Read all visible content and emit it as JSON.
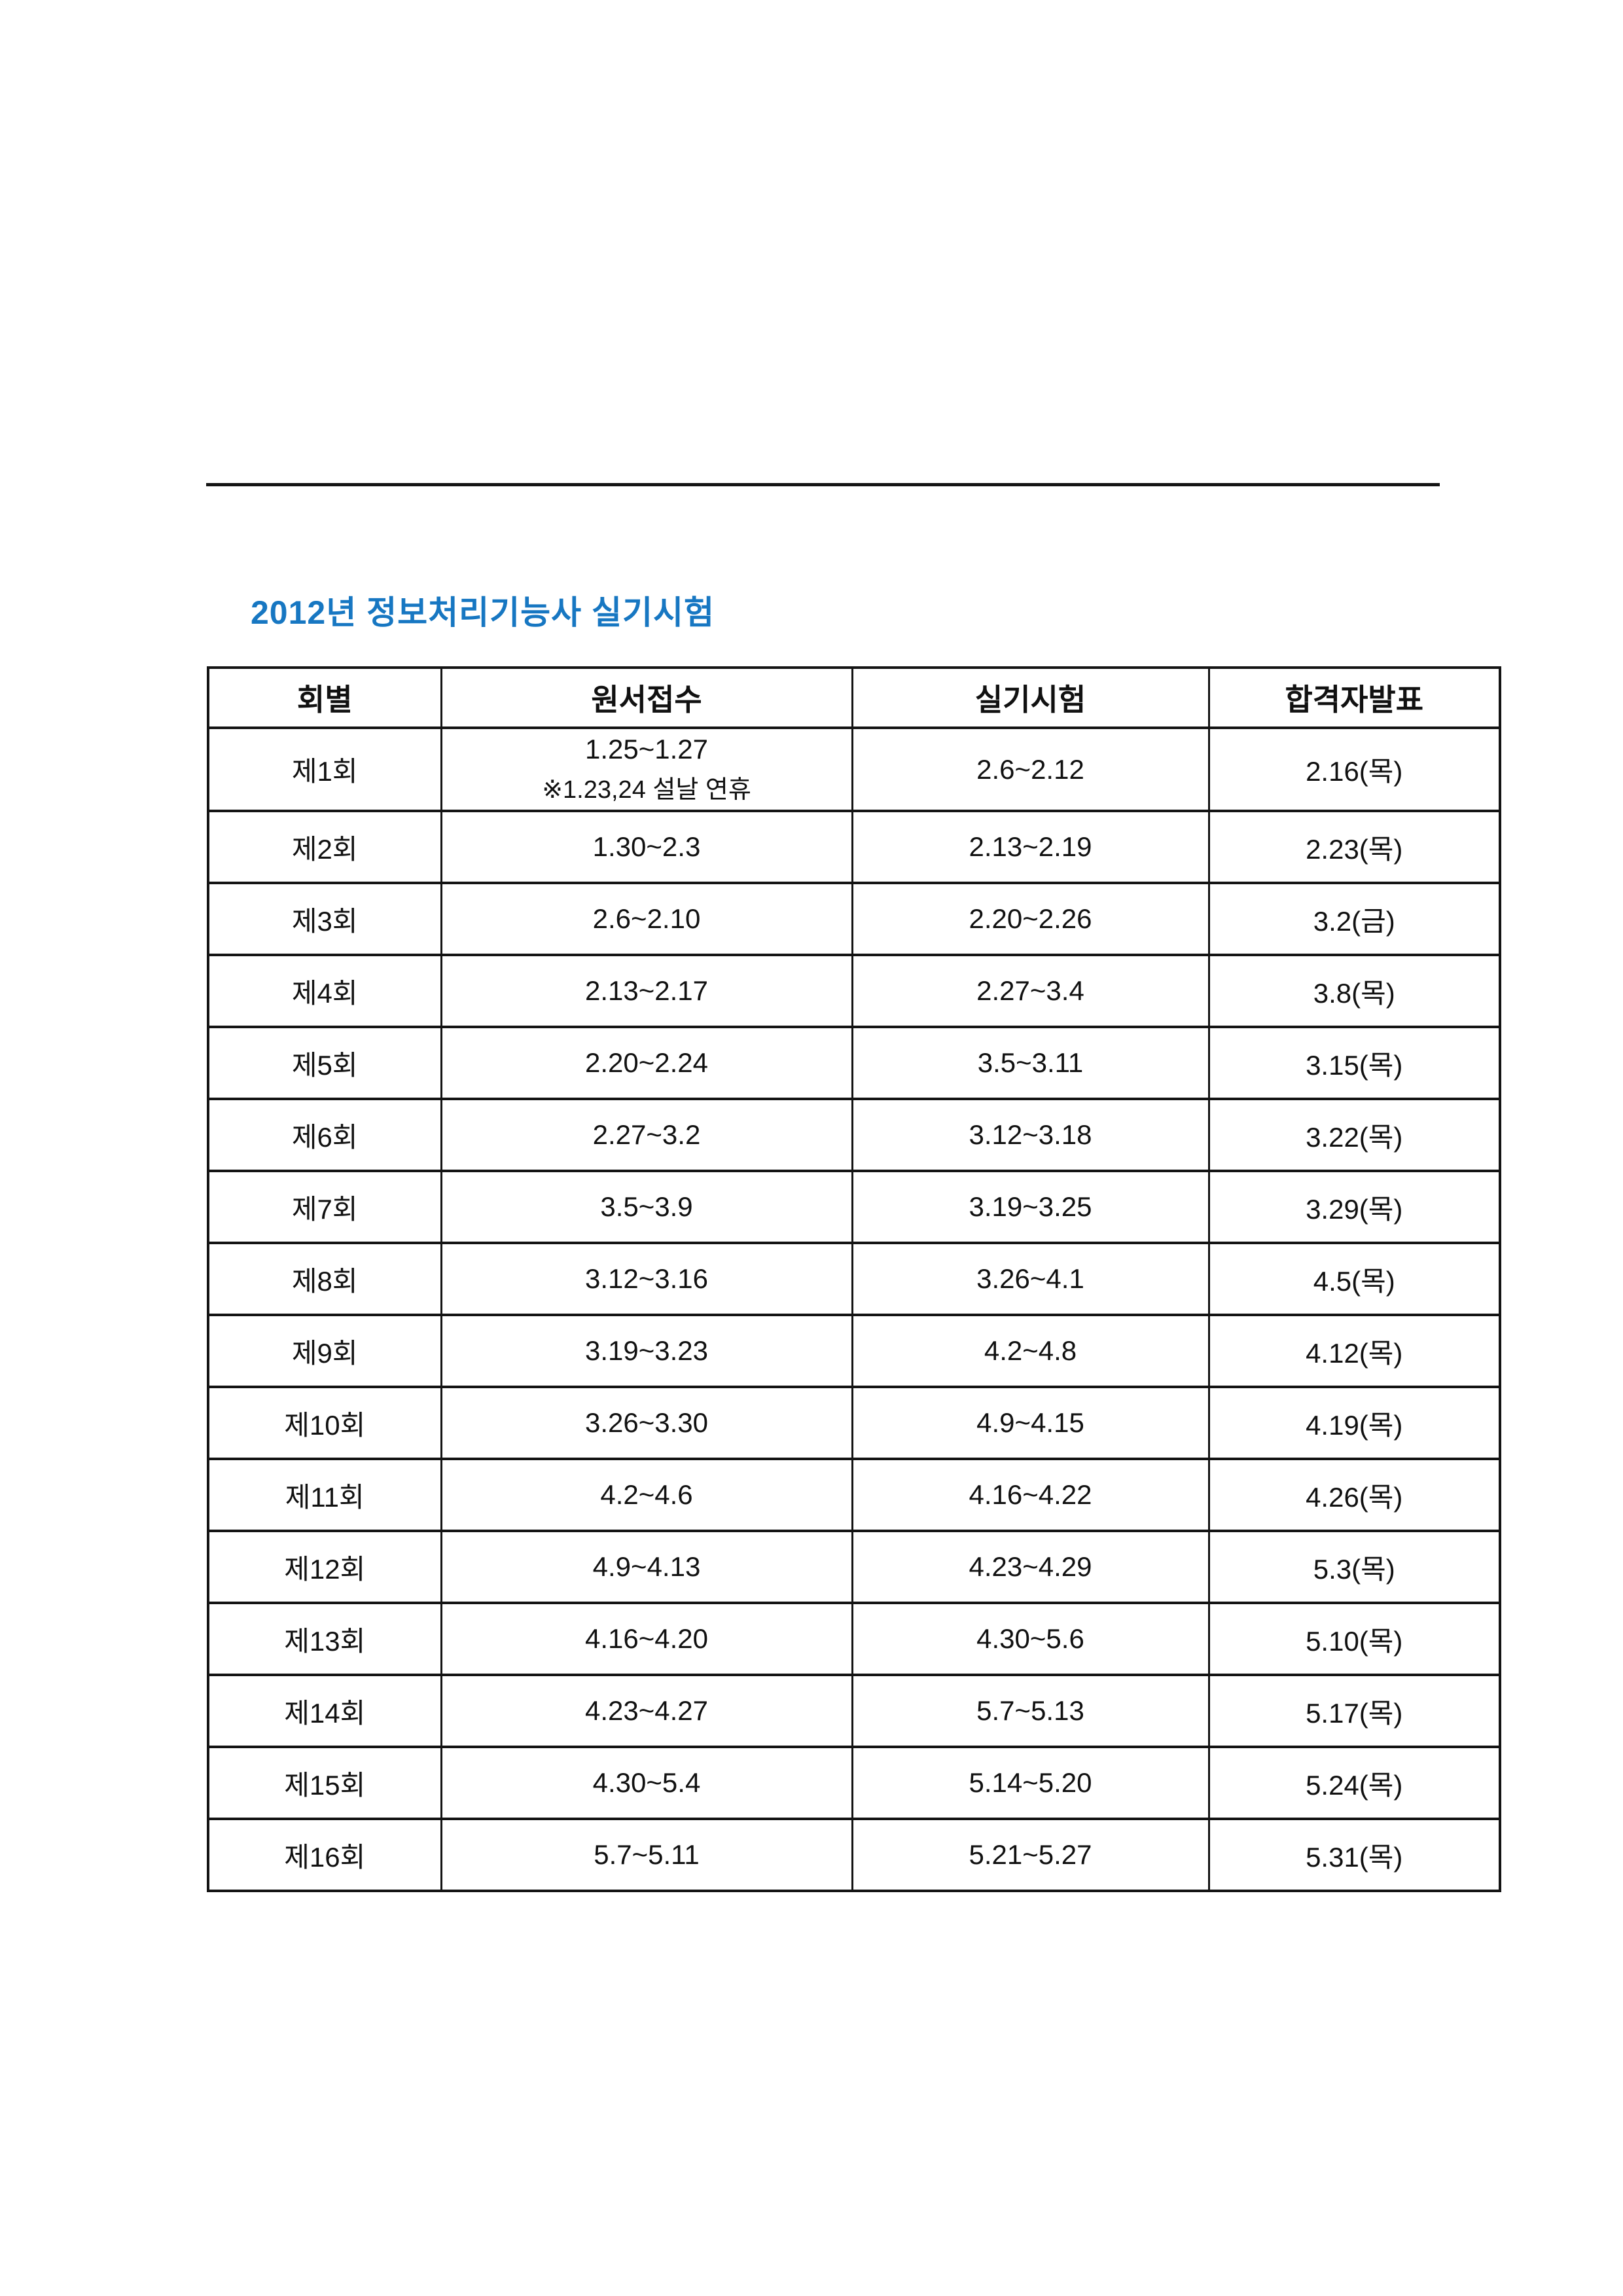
{
  "title": "2012년 정보처리기능사 실기시험",
  "title_color": "#1777C2",
  "table": {
    "headers": {
      "round": "회별",
      "application": "원서접수",
      "exam": "실기시험",
      "announcement": "합격자발표"
    },
    "rows": [
      {
        "round": "제1회",
        "application": "1.25~1.27",
        "application_note": "※1.23,24 설날 연휴",
        "exam": "2.6~2.12",
        "announcement": "2.16(목)"
      },
      {
        "round": "제2회",
        "application": "1.30~2.3",
        "exam": "2.13~2.19",
        "announcement": "2.23(목)"
      },
      {
        "round": "제3회",
        "application": "2.6~2.10",
        "exam": "2.20~2.26",
        "announcement": "3.2(금)"
      },
      {
        "round": "제4회",
        "application": "2.13~2.17",
        "exam": "2.27~3.4",
        "announcement": "3.8(목)"
      },
      {
        "round": "제5회",
        "application": "2.20~2.24",
        "exam": "3.5~3.11",
        "announcement": "3.15(목)"
      },
      {
        "round": "제6회",
        "application": "2.27~3.2",
        "exam": "3.12~3.18",
        "announcement": "3.22(목)"
      },
      {
        "round": "제7회",
        "application": "3.5~3.9",
        "exam": "3.19~3.25",
        "announcement": "3.29(목)"
      },
      {
        "round": "제8회",
        "application": "3.12~3.16",
        "exam": "3.26~4.1",
        "announcement": "4.5(목)"
      },
      {
        "round": "제9회",
        "application": "3.19~3.23",
        "exam": "4.2~4.8",
        "announcement": "4.12(목)"
      },
      {
        "round": "제10회",
        "application": "3.26~3.30",
        "exam": "4.9~4.15",
        "announcement": "4.19(목)"
      },
      {
        "round": "제11회",
        "application": "4.2~4.6",
        "exam": "4.16~4.22",
        "announcement": "4.26(목)"
      },
      {
        "round": "제12회",
        "application": "4.9~4.13",
        "exam": "4.23~4.29",
        "announcement": "5.3(목)"
      },
      {
        "round": "제13회",
        "application": "4.16~4.20",
        "exam": "4.30~5.6",
        "announcement": "5.10(목)"
      },
      {
        "round": "제14회",
        "application": "4.23~4.27",
        "exam": "5.7~5.13",
        "announcement": "5.17(목)"
      },
      {
        "round": "제15회",
        "application": "4.30~5.4",
        "exam": "5.14~5.20",
        "announcement": "5.24(목)"
      },
      {
        "round": "제16회",
        "application": "5.7~5.11",
        "exam": "5.21~5.27",
        "announcement": "5.31(목)"
      }
    ]
  }
}
